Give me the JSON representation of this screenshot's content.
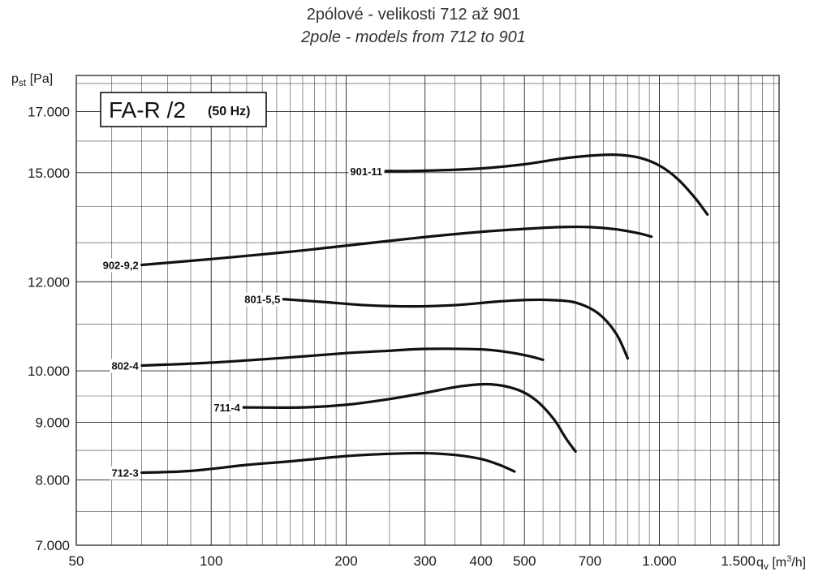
{
  "chart_data": {
    "type": "line",
    "title": "2pólové - velikosti 712 až 901",
    "subtitle": "2pole - models from 712 to 901",
    "ylabel": {
      "main": "p",
      "sub": "st",
      "unit": " [Pa]"
    },
    "xlabel": {
      "main": "q",
      "sub": "v",
      "unit_pre": " [m",
      "unit_sup": "3",
      "unit_post": "/h]"
    },
    "x_scale": "log",
    "y_scale": "log",
    "xlim": [
      50,
      1850
    ],
    "ylim": [
      7000,
      18300
    ],
    "grid": true,
    "x_ticks": [
      {
        "value": 50,
        "label": "50"
      },
      {
        "value": 100,
        "label": "100"
      },
      {
        "value": 200,
        "label": "200"
      },
      {
        "value": 300,
        "label": "300"
      },
      {
        "value": 400,
        "label": "400"
      },
      {
        "value": 500,
        "label": "500"
      },
      {
        "value": 700,
        "label": "700"
      },
      {
        "value": 1000,
        "label": "1.000"
      },
      {
        "value": 1500,
        "label": "1.500"
      }
    ],
    "y_ticks": [
      {
        "value": 7000,
        "label": "7.000"
      },
      {
        "value": 8000,
        "label": "8.000"
      },
      {
        "value": 9000,
        "label": "9.000"
      },
      {
        "value": 10000,
        "label": "10.000"
      },
      {
        "value": 12000,
        "label": "12.000"
      },
      {
        "value": 15000,
        "label": "15.000"
      },
      {
        "value": 17000,
        "label": "17.000"
      }
    ],
    "x_grid": [
      50,
      60,
      70,
      80,
      90,
      100,
      110,
      120,
      130,
      140,
      150,
      160,
      170,
      180,
      190,
      200,
      250,
      300,
      350,
      400,
      450,
      500,
      550,
      600,
      650,
      700,
      750,
      800,
      850,
      900,
      950,
      1000,
      1100,
      1200,
      1300,
      1400,
      1500,
      1600,
      1700,
      1800
    ],
    "y_grid": [
      7000,
      7500,
      8000,
      8500,
      9000,
      9500,
      10000,
      11000,
      12000,
      13000,
      14000,
      15000,
      16000,
      17000,
      18000
    ],
    "series": [
      {
        "name": "901-11",
        "points": [
          [
            245,
            15050
          ],
          [
            300,
            15060
          ],
          [
            400,
            15130
          ],
          [
            500,
            15260
          ],
          [
            600,
            15430
          ],
          [
            700,
            15530
          ],
          [
            800,
            15560
          ],
          [
            900,
            15470
          ],
          [
            1000,
            15220
          ],
          [
            1100,
            14800
          ],
          [
            1200,
            14250
          ],
          [
            1280,
            13770
          ]
        ]
      },
      {
        "name": "902-9,2",
        "points": [
          [
            70,
            12420
          ],
          [
            100,
            12570
          ],
          [
            150,
            12760
          ],
          [
            200,
            12920
          ],
          [
            300,
            13150
          ],
          [
            400,
            13290
          ],
          [
            500,
            13370
          ],
          [
            600,
            13420
          ],
          [
            700,
            13420
          ],
          [
            800,
            13360
          ],
          [
            900,
            13250
          ],
          [
            960,
            13160
          ]
        ]
      },
      {
        "name": "801-5,5",
        "points": [
          [
            145,
            11580
          ],
          [
            180,
            11510
          ],
          [
            220,
            11440
          ],
          [
            280,
            11410
          ],
          [
            350,
            11440
          ],
          [
            430,
            11520
          ],
          [
            500,
            11560
          ],
          [
            570,
            11560
          ],
          [
            650,
            11500
          ],
          [
            730,
            11250
          ],
          [
            800,
            10800
          ],
          [
            850,
            10260
          ]
        ]
      },
      {
        "name": "802-4",
        "points": [
          [
            70,
            10110
          ],
          [
            100,
            10170
          ],
          [
            150,
            10280
          ],
          [
            200,
            10370
          ],
          [
            250,
            10420
          ],
          [
            300,
            10460
          ],
          [
            400,
            10450
          ],
          [
            460,
            10390
          ],
          [
            510,
            10310
          ],
          [
            550,
            10230
          ]
        ]
      },
      {
        "name": "711-4",
        "points": [
          [
            118,
            9280
          ],
          [
            160,
            9280
          ],
          [
            200,
            9330
          ],
          [
            250,
            9440
          ],
          [
            300,
            9560
          ],
          [
            360,
            9690
          ],
          [
            420,
            9730
          ],
          [
            480,
            9630
          ],
          [
            530,
            9420
          ],
          [
            580,
            9070
          ],
          [
            620,
            8700
          ],
          [
            650,
            8480
          ]
        ]
      },
      {
        "name": "712-3",
        "points": [
          [
            70,
            8120
          ],
          [
            90,
            8150
          ],
          [
            120,
            8250
          ],
          [
            150,
            8310
          ],
          [
            200,
            8400
          ],
          [
            250,
            8440
          ],
          [
            300,
            8450
          ],
          [
            350,
            8420
          ],
          [
            400,
            8350
          ],
          [
            440,
            8250
          ],
          [
            475,
            8140
          ]
        ]
      }
    ],
    "curve_label_positions": [
      "left",
      "left",
      "left",
      "left",
      "left",
      "left"
    ]
  },
  "legend_box": {
    "model": "FA-R /2",
    "frequency": "(50 Hz)"
  }
}
